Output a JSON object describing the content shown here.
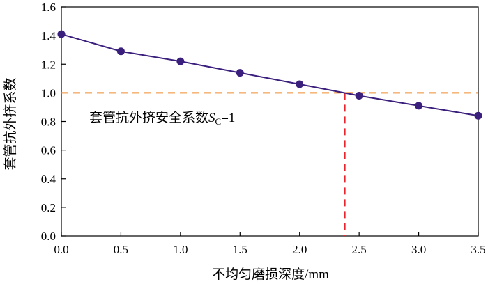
{
  "chart_data": {
    "type": "line",
    "xlabel": "不均匀磨损深度/mm",
    "ylabel": "套管抗外挤系数",
    "xlim": [
      0,
      3.5
    ],
    "ylim": [
      0,
      1.6
    ],
    "x_ticks": [
      "0.0",
      "0.5",
      "1.0",
      "1.5",
      "2.0",
      "2.5",
      "3.0",
      "3.5"
    ],
    "y_ticks": [
      "0.0",
      "0.2",
      "0.4",
      "0.6",
      "0.8",
      "1.0",
      "1.2",
      "1.4",
      "1.6"
    ],
    "grid": false,
    "series": [
      {
        "x": [
          0.0,
          0.5,
          1.0,
          1.5,
          2.0,
          2.5,
          3.0,
          3.5
        ],
        "values": [
          1.41,
          1.29,
          1.22,
          1.14,
          1.06,
          0.98,
          0.91,
          0.84
        ]
      }
    ],
    "reference_line": {
      "y": 1.0
    },
    "intersection": {
      "x": 2.38,
      "y": 1.0
    },
    "annotation": {
      "text": "套管抗外挤安全系数",
      "symbol": "S",
      "subscript": "C",
      "value_text": "=1"
    },
    "colors": {
      "series": "#3b1f7d",
      "marker": "#3b1f7d",
      "reference": "#f08c2e",
      "intersection": "#e6252f",
      "axis": "#000000"
    }
  }
}
